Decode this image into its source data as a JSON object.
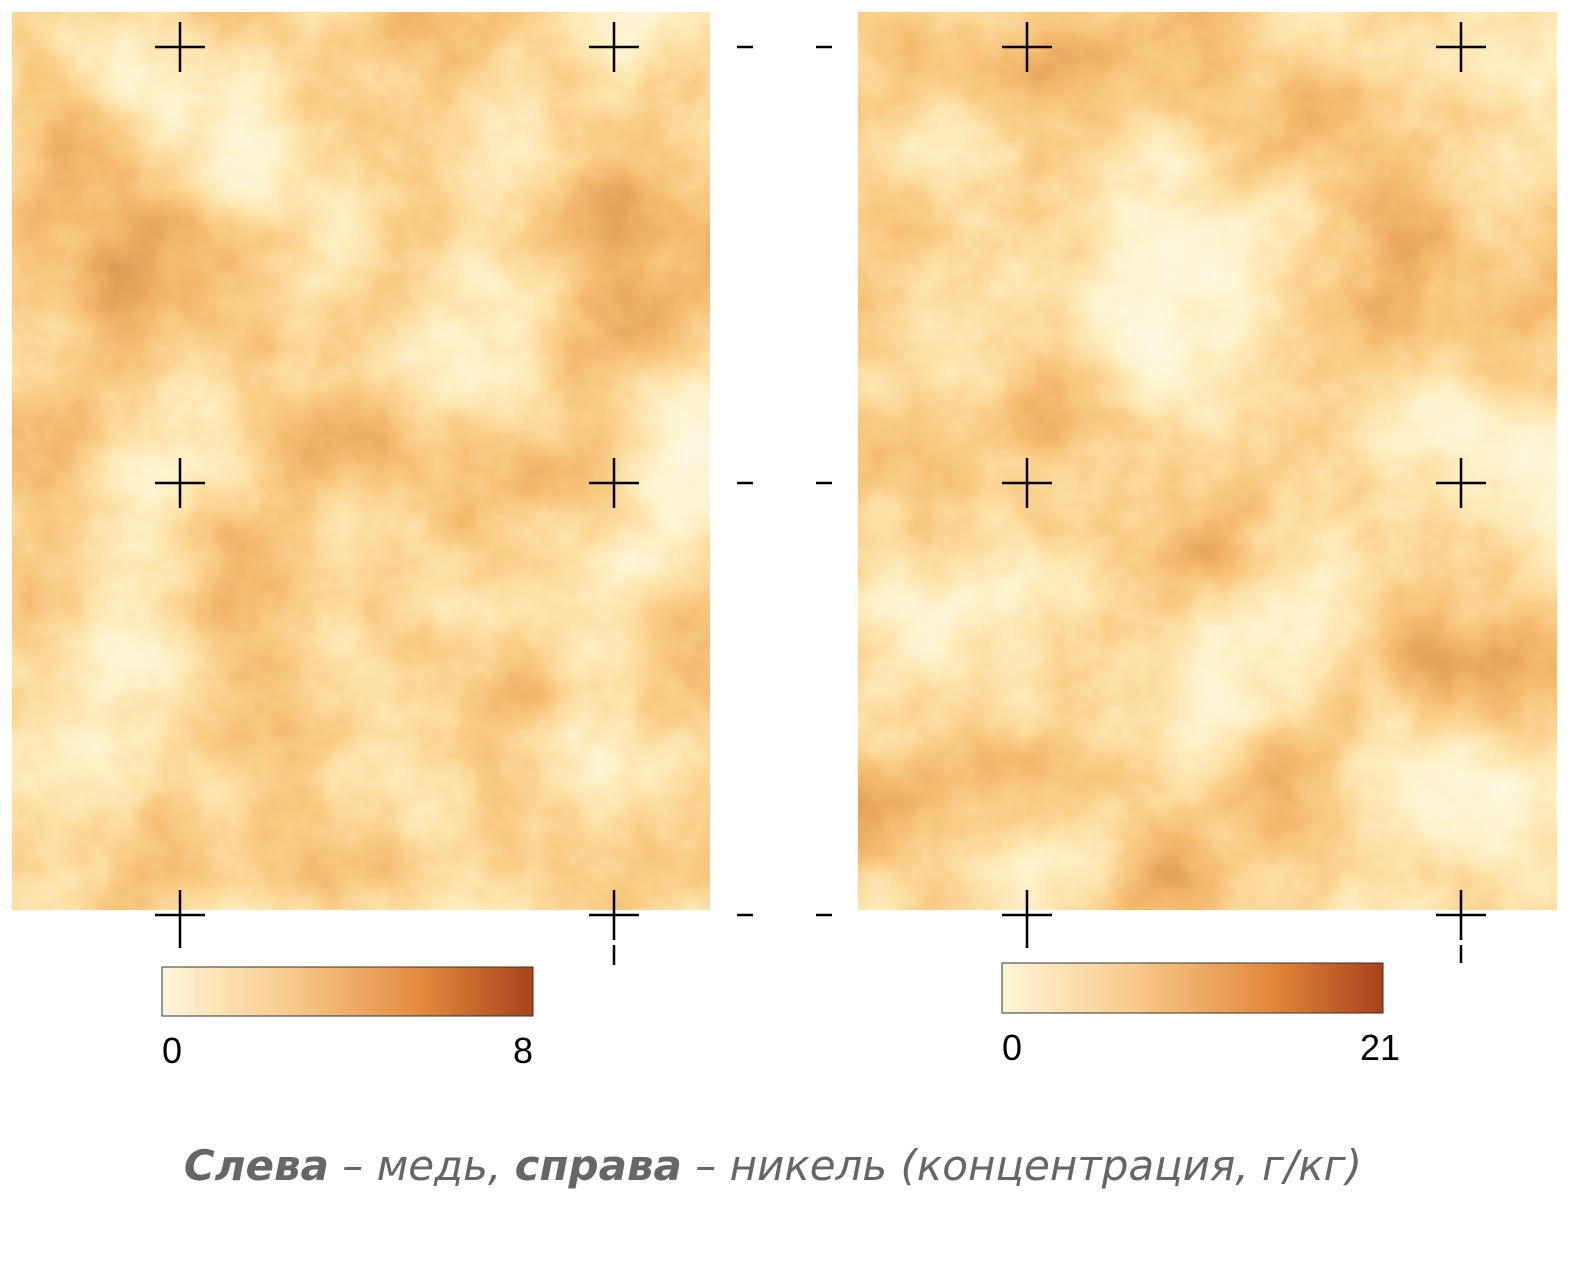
{
  "maps": [
    {
      "colorbar": {
        "min": 0,
        "max": 8
      }
    },
    {
      "colorbar": {
        "min": 0,
        "max": 21
      }
    }
  ],
  "caption": {
    "parts": [
      {
        "text": "Слева",
        "bold": true
      },
      {
        "text": " – медь, ",
        "bold": false
      },
      {
        "text": "справа",
        "bold": true
      },
      {
        "text": " – никель (концентрация, г/кг)",
        "bold": false
      }
    ]
  }
}
